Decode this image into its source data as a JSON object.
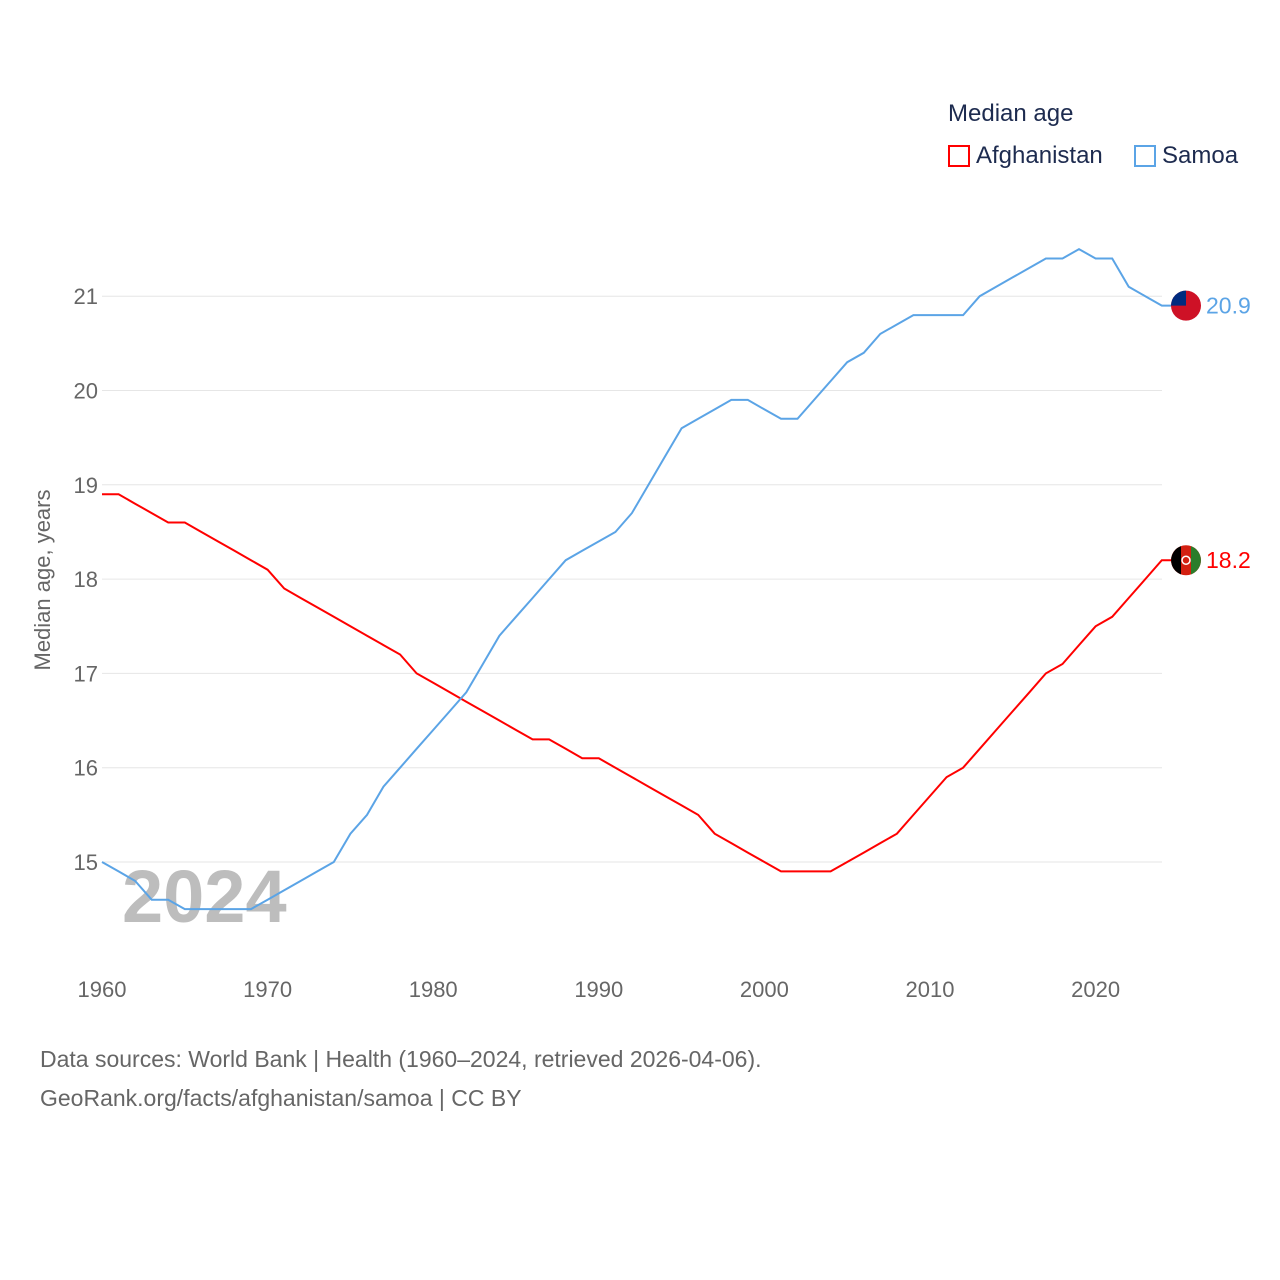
{
  "chart_data": {
    "type": "line",
    "title": "Median age",
    "xlabel": "",
    "ylabel": "Median age, years",
    "xlim": [
      1960,
      2024
    ],
    "ylim": [
      14.2,
      21.8
    ],
    "x_ticks": [
      "1960",
      "1970",
      "1980",
      "1990",
      "2000",
      "2010",
      "2020"
    ],
    "y_ticks": [
      "15",
      "16",
      "17",
      "18",
      "19",
      "20",
      "21"
    ],
    "grid": true,
    "legend_position": "top-right",
    "year_overlay": "2024",
    "x": [
      1960,
      1961,
      1962,
      1963,
      1964,
      1965,
      1966,
      1967,
      1968,
      1969,
      1970,
      1971,
      1972,
      1973,
      1974,
      1975,
      1976,
      1977,
      1978,
      1979,
      1980,
      1981,
      1982,
      1983,
      1984,
      1985,
      1986,
      1987,
      1988,
      1989,
      1990,
      1991,
      1992,
      1993,
      1994,
      1995,
      1996,
      1997,
      1998,
      1999,
      2000,
      2001,
      2002,
      2003,
      2004,
      2005,
      2006,
      2007,
      2008,
      2009,
      2010,
      2011,
      2012,
      2013,
      2014,
      2015,
      2016,
      2017,
      2018,
      2019,
      2020,
      2021,
      2022,
      2023,
      2024
    ],
    "series": [
      {
        "name": "Afghanistan",
        "color": "#ff0000",
        "end_label": "18.2",
        "values": [
          18.9,
          18.9,
          18.8,
          18.7,
          18.6,
          18.6,
          18.5,
          18.4,
          18.3,
          18.2,
          18.1,
          17.9,
          17.8,
          17.7,
          17.6,
          17.5,
          17.4,
          17.3,
          17.2,
          17.0,
          16.9,
          16.8,
          16.7,
          16.6,
          16.5,
          16.4,
          16.3,
          16.3,
          16.2,
          16.1,
          16.1,
          16.0,
          15.9,
          15.8,
          15.7,
          15.6,
          15.5,
          15.3,
          15.2,
          15.1,
          15.0,
          14.9,
          14.9,
          14.9,
          14.9,
          15.0,
          15.1,
          15.2,
          15.3,
          15.5,
          15.7,
          15.9,
          16.0,
          16.2,
          16.4,
          16.6,
          16.8,
          17.0,
          17.1,
          17.3,
          17.5,
          17.6,
          17.8,
          18.0,
          18.2
        ]
      },
      {
        "name": "Samoa",
        "color": "#5ba4e6",
        "end_label": "20.9",
        "values": [
          15.0,
          14.9,
          14.8,
          14.6,
          14.6,
          14.5,
          14.5,
          14.5,
          14.5,
          14.5,
          14.6,
          14.7,
          14.8,
          14.9,
          15.0,
          15.3,
          15.5,
          15.8,
          16.0,
          16.2,
          16.4,
          16.6,
          16.8,
          17.1,
          17.4,
          17.6,
          17.8,
          18.0,
          18.2,
          18.3,
          18.4,
          18.5,
          18.7,
          19.0,
          19.3,
          19.6,
          19.7,
          19.8,
          19.9,
          19.9,
          19.8,
          19.7,
          19.7,
          19.9,
          20.1,
          20.3,
          20.4,
          20.6,
          20.7,
          20.8,
          20.8,
          20.8,
          20.8,
          21.0,
          21.1,
          21.2,
          21.3,
          21.4,
          21.4,
          21.5,
          21.4,
          21.4,
          21.1,
          21.0,
          20.9
        ]
      }
    ]
  },
  "footer": {
    "line1": "Data sources: World Bank | Health (1960–2024, retrieved 2026-04-06).",
    "line2": "GeoRank.org/facts/afghanistan/samoa | CC BY"
  }
}
